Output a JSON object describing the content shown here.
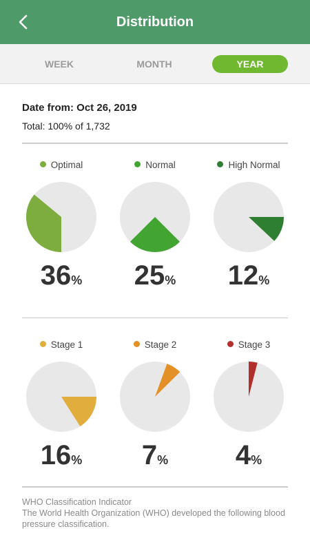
{
  "header": {
    "title": "Distribution",
    "back_icon": "chevron-left-icon",
    "color": "#4f9a69"
  },
  "tabs": [
    {
      "label": "WEEK",
      "active": false
    },
    {
      "label": "MONTH",
      "active": false
    },
    {
      "label": "YEAR",
      "active": true
    }
  ],
  "summary": {
    "date_label": "Date from: Oct 26, 2019",
    "total_label": "Total: 100% of 1,732"
  },
  "categories": [
    {
      "label": "Optimal",
      "value": 36,
      "color": "#7dad3f"
    },
    {
      "label": "Normal",
      "value": 25,
      "color": "#42a532"
    },
    {
      "label": "High Normal",
      "value": 12,
      "color": "#2f7f33"
    },
    {
      "label": "Stage 1",
      "value": 16,
      "color": "#e1ad3d"
    },
    {
      "label": "Stage 2",
      "value": 7,
      "color": "#e39127"
    },
    {
      "label": "Stage 3",
      "value": 4,
      "color": "#b2302b"
    }
  ],
  "percent_sign": "%",
  "pie_background_color": "#e8e8e8",
  "footer": {
    "title": "WHO Classification Indicator",
    "text": "The World Health Organization (WHO) developed the following blood pressure classification."
  }
}
